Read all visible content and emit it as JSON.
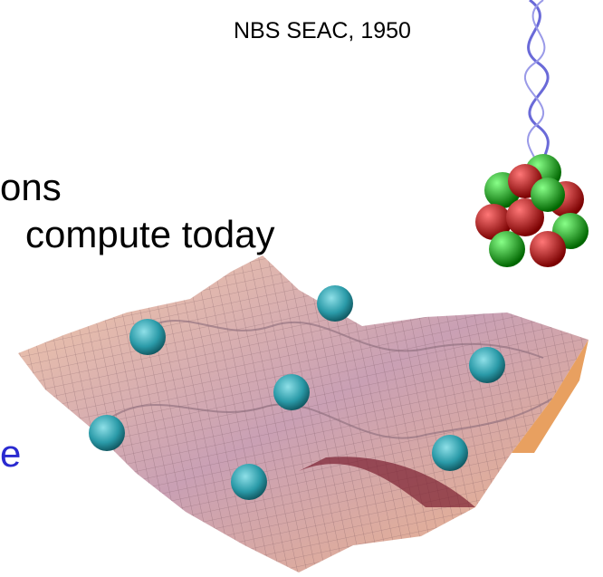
{
  "caption": "NBS SEAC, 1950",
  "lines": [
    "ons",
    "compute today"
  ],
  "fragment": "e"
}
